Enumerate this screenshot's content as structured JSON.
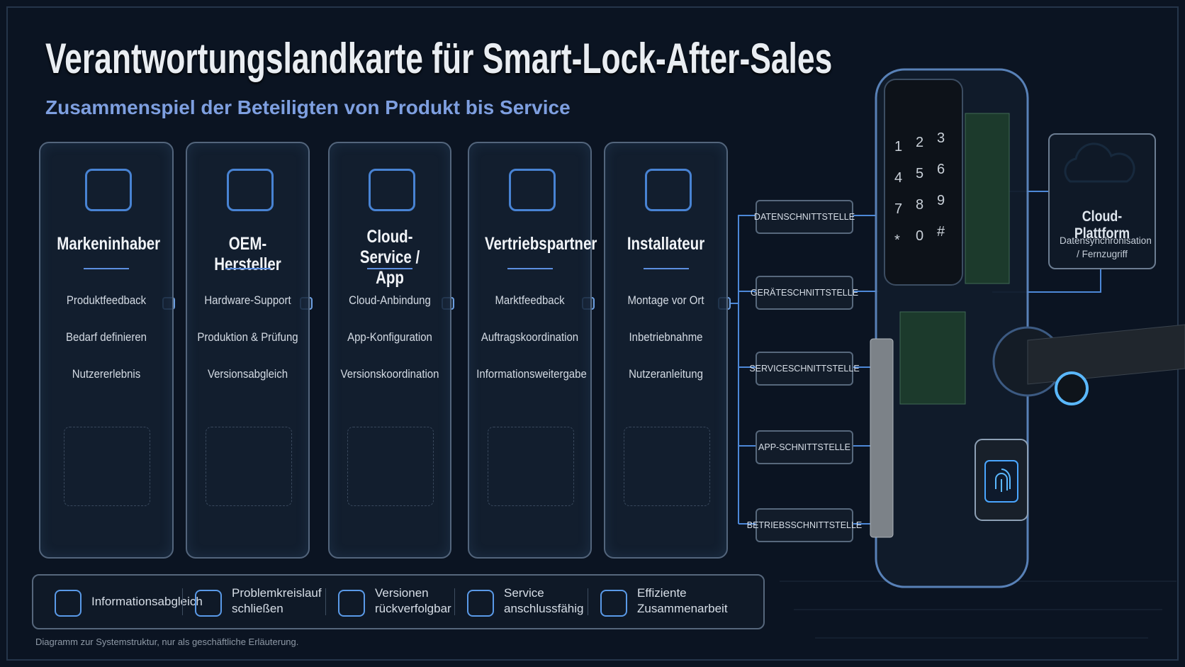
{
  "header": {
    "title": "Verantwortungslandkarte für Smart-Lock-After-Sales",
    "subtitle": "Zusammenspiel der Beteiligten von Produkt bis Service"
  },
  "columns": [
    {
      "title": "Markeninhaber",
      "items": [
        "Produktfeedback",
        "Bedarf definieren",
        "Nutzererlebnis"
      ]
    },
    {
      "title": "OEM-Hersteller",
      "items": [
        "Hardware-Support",
        "Produktion & Prüfung",
        "Versionsabgleich"
      ]
    },
    {
      "title": "Cloud-Service / App",
      "items": [
        "Cloud-Anbindung",
        "App-Konfiguration",
        "Versionskoordination"
      ]
    },
    {
      "title": "Vertriebspartner",
      "items": [
        "Marktfeedback",
        "Auftragskoordination",
        "Informationsweitergabe"
      ]
    },
    {
      "title": "Installateur",
      "items": [
        "Montage vor Ort",
        "Inbetriebnahme",
        "Nutzeranleitung"
      ]
    }
  ],
  "interfaces": [
    "DATENSCHNITTSTELLE",
    "GERÄTESCHNITTSTELLE",
    "SERVICESCHNITTSTELLE",
    "APP-SCHNITTSTELLE",
    "BETRIEBSSCHNITTSTELLE"
  ],
  "cloud": {
    "title": "Cloud-Plattform",
    "subtitle": "Datensynchronisation / Fernzugriff"
  },
  "lock": {
    "keys": [
      "1",
      "2",
      "3",
      "4",
      "5",
      "6",
      "7",
      "8",
      "9",
      "*",
      "0",
      "#"
    ]
  },
  "benefits": [
    "Informationsabgleich",
    "Problemkreislauf schließen",
    "Versionen rückverfolgbar",
    "Service anschlussfähig",
    "Effiziente Zusammenarbeit"
  ],
  "footnote": "Diagramm zur Systemstruktur, nur als geschäftliche Erläuterung."
}
